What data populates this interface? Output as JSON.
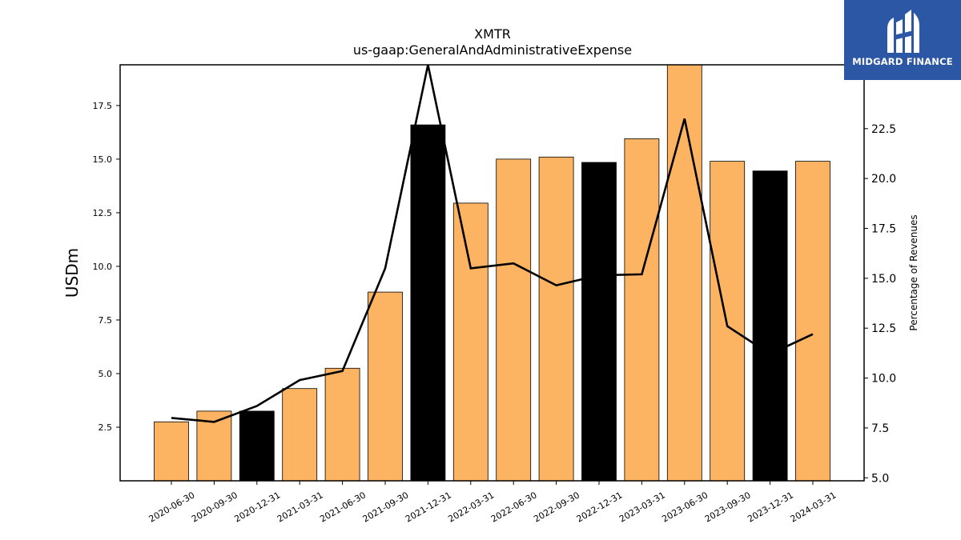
{
  "chart_data": {
    "type": "bar",
    "title": "XMTR",
    "subtitle": "us-gaap:GeneralAndAdministrativeExpense",
    "ylabel": "USDm",
    "y2label": "Percentage of Revenues",
    "ylim": [
      0,
      19.4
    ],
    "y2lim": [
      4.85,
      25.7
    ],
    "yticks": [
      "2.5",
      "5.0",
      "7.5",
      "10.0",
      "12.5",
      "15.0",
      "17.5"
    ],
    "y2ticks": [
      "5.0",
      "7.5",
      "10.0",
      "12.5",
      "15.0",
      "17.5",
      "20.0",
      "22.5"
    ],
    "categories": [
      "2020-06-30",
      "2020-09-30",
      "2020-12-31",
      "2021-03-31",
      "2021-06-30",
      "2021-09-30",
      "2021-12-31",
      "2022-03-31",
      "2022-06-30",
      "2022-09-30",
      "2022-12-31",
      "2023-03-31",
      "2023-06-30",
      "2023-09-30",
      "2023-12-31",
      "2024-03-31"
    ],
    "series": [
      {
        "axis": "left",
        "kind": "bar",
        "values": [
          2.75,
          3.25,
          3.25,
          4.3,
          5.25,
          8.8,
          16.6,
          12.95,
          15.0,
          15.1,
          14.85,
          15.95,
          19.4,
          14.9,
          14.45,
          14.9
        ],
        "colors": [
          "#fdb462",
          "#fdb462",
          "#000000",
          "#fdb462",
          "#fdb462",
          "#fdb462",
          "#000000",
          "#fdb462",
          "#fdb462",
          "#fdb462",
          "#000000",
          "#fdb462",
          "#fdb462",
          "#fdb462",
          "#000000",
          "#fdb462"
        ]
      },
      {
        "axis": "right",
        "kind": "line",
        "color": "#000000",
        "values": [
          8.0,
          7.8,
          8.6,
          9.9,
          10.35,
          15.5,
          25.7,
          15.5,
          15.75,
          14.65,
          15.15,
          15.2,
          23.0,
          12.6,
          11.2,
          12.2
        ]
      }
    ],
    "grid": false
  },
  "logo": {
    "text": "MIDGARD FINANCE",
    "background": "#2b57a5"
  }
}
